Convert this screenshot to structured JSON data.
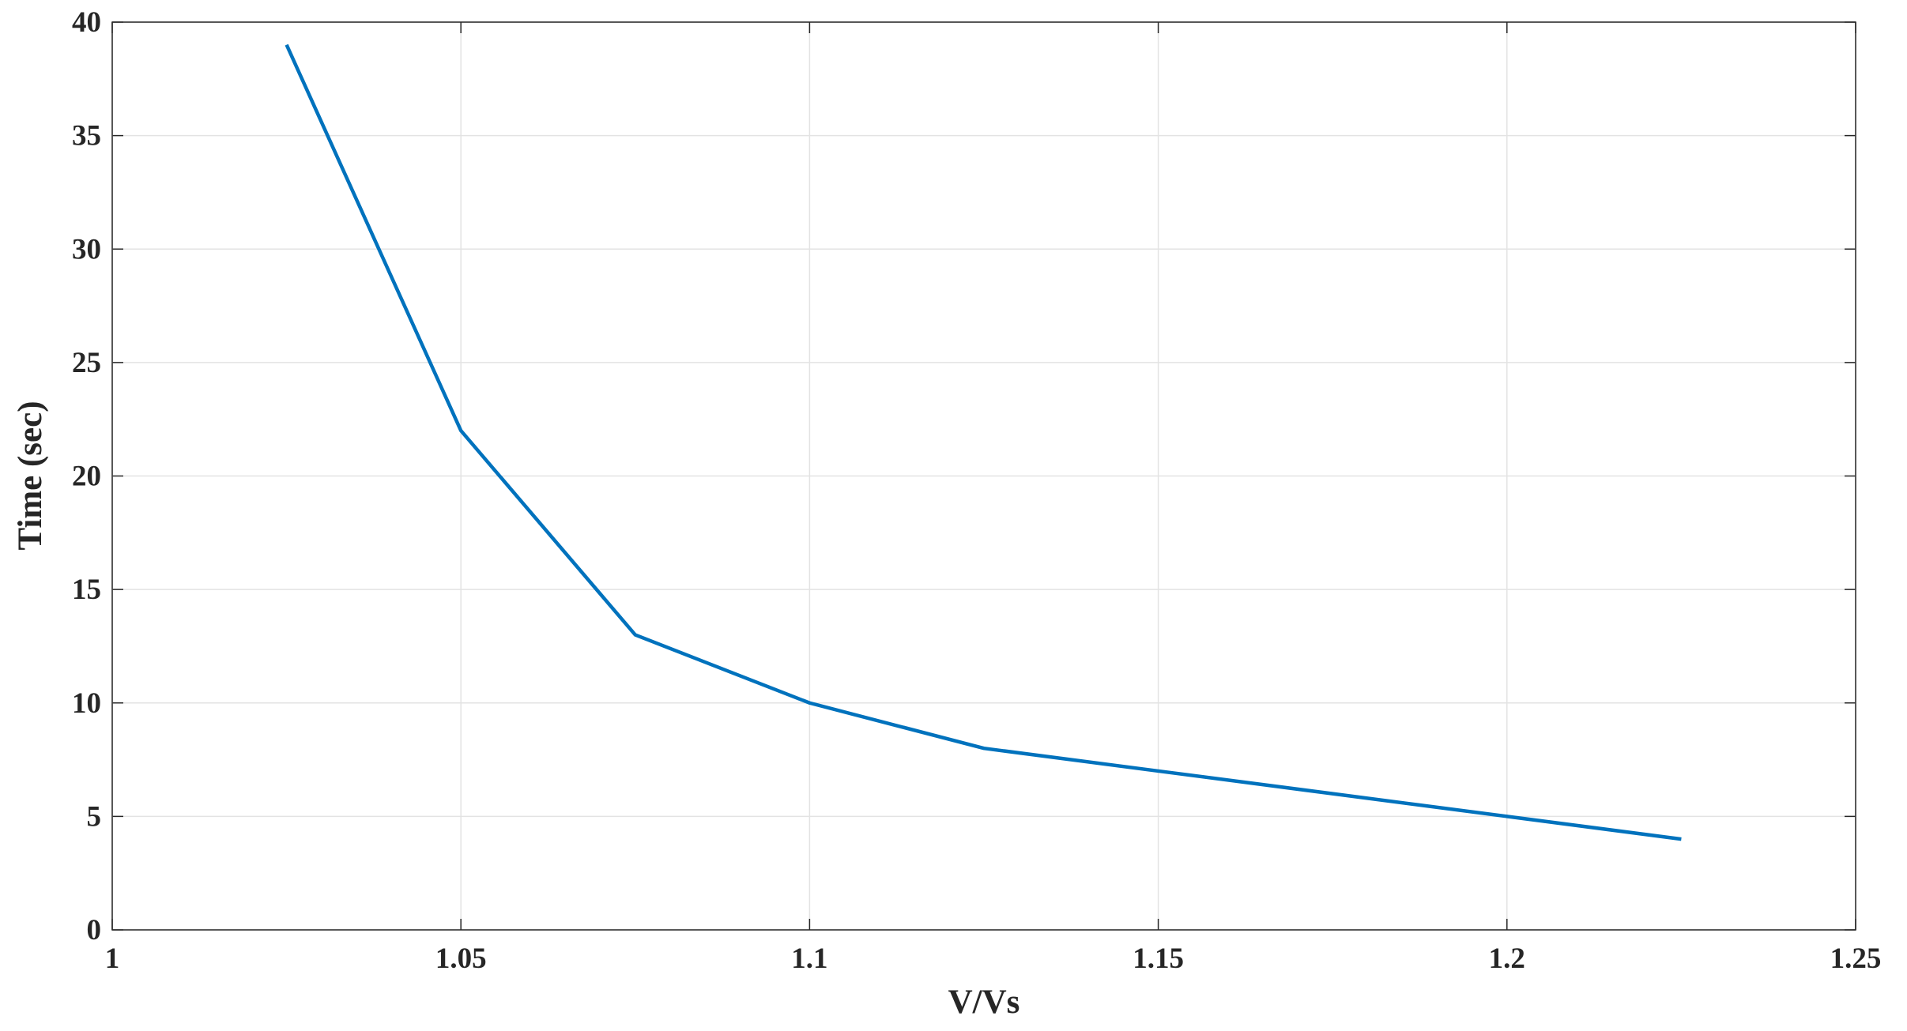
{
  "chart_data": {
    "type": "line",
    "x_label": "V/Vs",
    "y_label": "Time (sec)",
    "x": [
      1.025,
      1.05,
      1.075,
      1.1,
      1.125,
      1.15,
      1.175,
      1.2,
      1.225
    ],
    "series": [
      {
        "color": "#0072bd",
        "values": [
          39,
          22,
          13,
          10,
          8,
          7,
          6,
          5,
          4
        ]
      }
    ],
    "xlim": [
      1,
      1.25
    ],
    "xticks": [
      1,
      1.05,
      1.1,
      1.15,
      1.2,
      1.25
    ],
    "ylim": [
      0,
      40
    ],
    "yticks": [
      0,
      5,
      10,
      15,
      20,
      25,
      30,
      35,
      40
    ],
    "grid": true
  }
}
